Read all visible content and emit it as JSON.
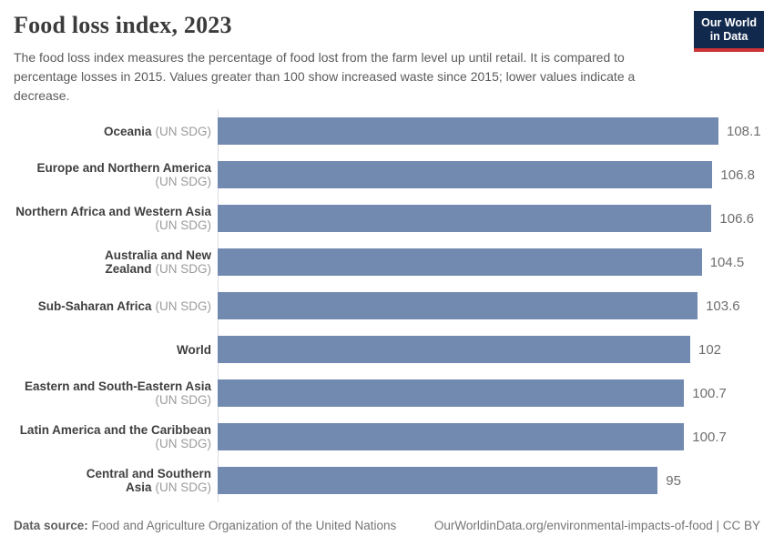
{
  "header": {
    "title": "Food loss index, 2023",
    "subtitle": "The food loss index measures the percentage of food lost from the farm level up until retail. It is compared to percentage losses in 2015. Values greater than 100 show increased waste since 2015; lower values indicate a decrease.",
    "logo_line1": "Our World",
    "logo_line2": "in Data"
  },
  "chart_data": {
    "type": "bar",
    "orientation": "horizontal",
    "title": "Food loss index, 2023",
    "xlabel": "",
    "ylabel": "",
    "xlim": [
      0,
      108.1
    ],
    "grid": false,
    "legend": false,
    "bar_color": "#7289b0",
    "categories": [
      "Oceania (UN SDG)",
      "Europe and Northern America (UN SDG)",
      "Northern Africa and Western Asia (UN SDG)",
      "Australia and New Zealand (UN SDG)",
      "Sub-Saharan Africa (UN SDG)",
      "World",
      "Eastern and South-Eastern Asia (UN SDG)",
      "Latin America and the Caribbean (UN SDG)",
      "Central and Southern Asia (UN SDG)"
    ],
    "values": [
      108.1,
      106.8,
      106.6,
      104.5,
      103.6,
      102,
      100.7,
      100.7,
      95
    ],
    "bars": [
      {
        "name": "Oceania",
        "qualifier": "(UN SDG)",
        "two_line": false,
        "value": 108.1,
        "label": "108.1"
      },
      {
        "name": "Europe and Northern America",
        "qualifier": "(UN SDG)",
        "two_line": true,
        "value": 106.8,
        "label": "106.8"
      },
      {
        "name": "Northern Africa and Western Asia",
        "qualifier": "(UN SDG)",
        "two_line": true,
        "value": 106.6,
        "label": "106.6"
      },
      {
        "name": "Australia and New Zealand",
        "qualifier": "(UN SDG)",
        "two_line": false,
        "value": 104.5,
        "label": "104.5"
      },
      {
        "name": "Sub-Saharan Africa",
        "qualifier": "(UN SDG)",
        "two_line": false,
        "value": 103.6,
        "label": "103.6"
      },
      {
        "name": "World",
        "qualifier": "",
        "two_line": false,
        "value": 102,
        "label": "102"
      },
      {
        "name": "Eastern and South-Eastern Asia",
        "qualifier": "(UN SDG)",
        "two_line": true,
        "value": 100.7,
        "label": "100.7"
      },
      {
        "name": "Latin America and the Caribbean",
        "qualifier": "(UN SDG)",
        "two_line": true,
        "value": 100.7,
        "label": "100.7"
      },
      {
        "name": "Central and Southern Asia",
        "qualifier": "(UN SDG)",
        "two_line": false,
        "value": 95,
        "label": "95"
      }
    ]
  },
  "footer": {
    "source_label": "Data source:",
    "source_text": " Food and Agriculture Organization of the United Nations",
    "link_text": "OurWorldinData.org/environmental-impacts-of-food | CC BY"
  },
  "colors": {
    "bar": "#7289b0",
    "logo_navy": "#12294e",
    "logo_red": "#cb3335",
    "title_text": "#3b3b3b",
    "subtitle_text": "#5b5b5b",
    "label_name": "#3f3f3f",
    "label_muted": "#9b9b9b",
    "value_text": "#6e6e6e",
    "axis_line": "#dddde4"
  }
}
